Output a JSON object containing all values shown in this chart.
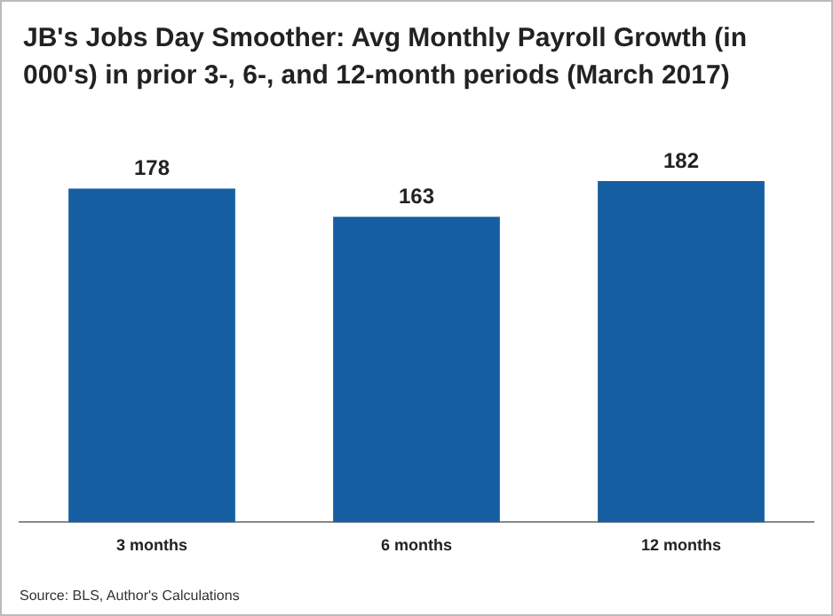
{
  "chart_data": {
    "type": "bar",
    "title": "JB's Jobs Day Smoother: Avg Monthly Payroll Growth (in 000's) in prior 3-, 6-, and 12-month periods (March 2017)",
    "categories": [
      "3 months",
      "6 months",
      "12 months"
    ],
    "values": [
      178,
      163,
      182
    ],
    "color": "#155ea1",
    "data_labels": true,
    "grid": false,
    "legend": false,
    "annotations": [
      "Source: BLS, Author's Calculations"
    ]
  }
}
